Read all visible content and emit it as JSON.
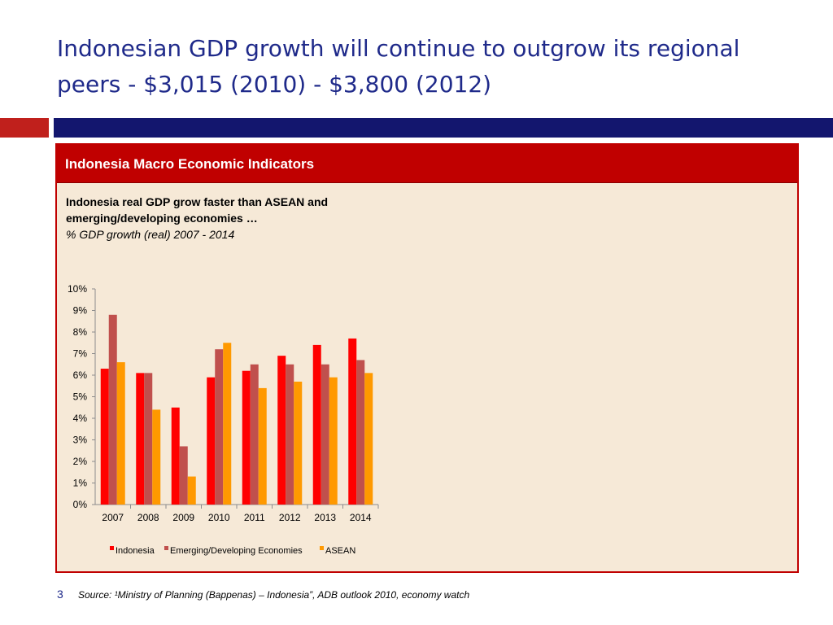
{
  "slide": {
    "title": "Indonesian GDP growth will continue to outgrow its regional peers - $3,015 (2010) - $3,800 (2012)",
    "page_number": "3",
    "source": "Source: ¹Ministry of Planning (Bappenas) – Indonesia”, ADB outlook 2010, economy watch"
  },
  "panel": {
    "title": "Indonesia Macro Economic Indicators",
    "subtitle_line1": "Indonesia real GDP grow faster than ASEAN and emerging/developing economies  …",
    "subtitle_line2": "% GDP growth (real) 2007 - 2014"
  },
  "colors": {
    "title": "#1f2a8a",
    "accent_red": "#c00000",
    "navy": "#13166e",
    "panel_bg": "#f6e9d7"
  },
  "chart_data": {
    "type": "bar",
    "categories": [
      "2007",
      "2008",
      "2009",
      "2010",
      "2011",
      "2012",
      "2013",
      "2014"
    ],
    "series": [
      {
        "name": "Indonesia",
        "color": "#ff0000",
        "values": [
          6.3,
          6.1,
          4.5,
          5.9,
          6.2,
          6.9,
          7.4,
          7.7
        ]
      },
      {
        "name": "Emerging/Developing Economies",
        "color": "#c0504d",
        "values": [
          8.8,
          6.1,
          2.7,
          7.2,
          6.5,
          6.5,
          6.5,
          6.7
        ]
      },
      {
        "name": "ASEAN",
        "color": "#ff9900",
        "values": [
          6.6,
          4.4,
          1.3,
          7.5,
          5.4,
          5.7,
          5.9,
          6.1
        ]
      }
    ],
    "ylim": [
      0,
      10
    ],
    "yticks": [
      "0%",
      "1%",
      "2%",
      "3%",
      "4%",
      "5%",
      "6%",
      "7%",
      "8%",
      "9%",
      "10%"
    ],
    "legend_position": "bottom",
    "grid": false
  }
}
